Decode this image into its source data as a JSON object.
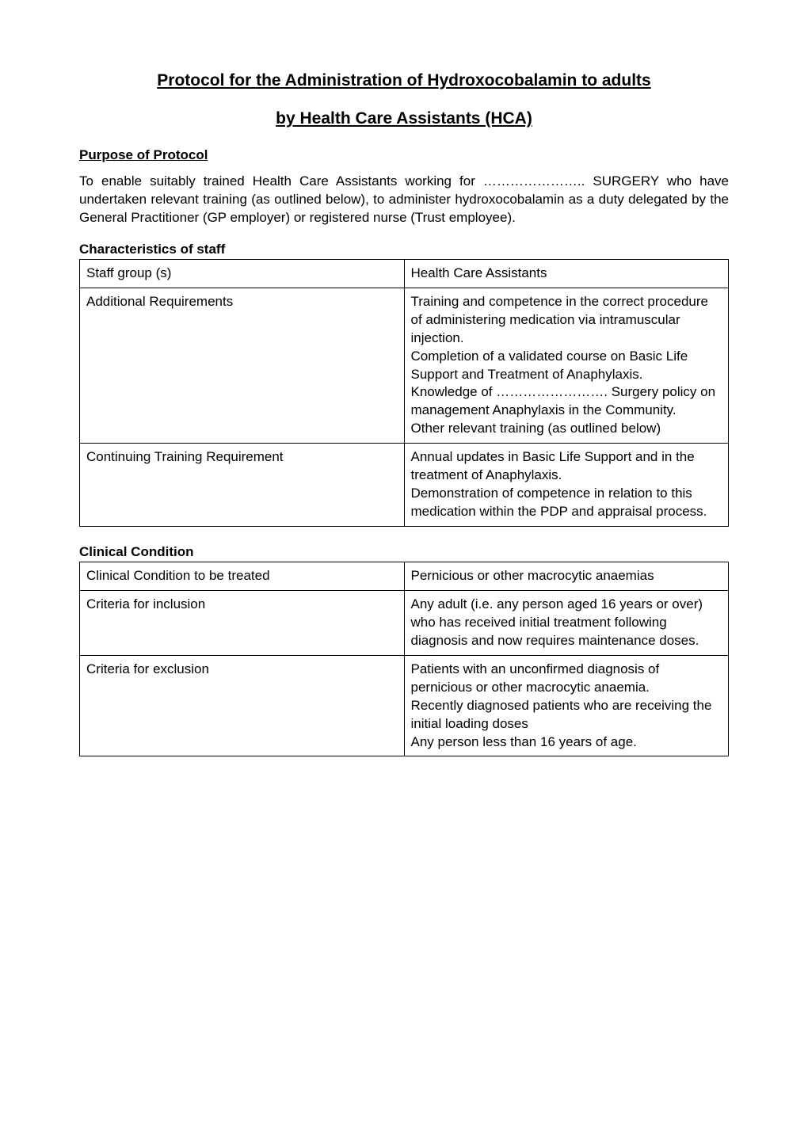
{
  "title": "Protocol for the Administration of Hydroxocobalamin to adults",
  "subtitle": "by Health Care Assistants (HCA)",
  "purpose": {
    "heading": "Purpose of Protocol",
    "body": "To enable suitably trained Health Care Assistants working for ………………….. SURGERY who have undertaken relevant training (as outlined below), to administer hydroxocobalamin as a duty delegated by the General Practitioner (GP employer) or registered nurse (Trust employee)."
  },
  "staff_table": {
    "heading": "Characteristics of staff",
    "rows": [
      {
        "label": "Staff group (s)",
        "value": "Health Care Assistants"
      },
      {
        "label": "Additional Requirements",
        "value": "Training and competence in the correct procedure of administering medication via intramuscular injection.\nCompletion of a validated course on Basic Life Support and Treatment of Anaphylaxis.\nKnowledge of ……………………. Surgery policy on management Anaphylaxis in the Community.\nOther relevant training (as outlined below)"
      },
      {
        "label": "Continuing Training Requirement",
        "value": "Annual updates in Basic Life Support and in the treatment of Anaphylaxis.\nDemonstration of competence in relation to this medication within the PDP and appraisal process."
      }
    ]
  },
  "clinical_table": {
    "heading": "Clinical Condition",
    "rows": [
      {
        "label": "Clinical Condition to be treated",
        "value": "Pernicious or other macrocytic anaemias"
      },
      {
        "label": "Criteria for inclusion",
        "value": "Any adult (i.e. any person aged 16 years or over) who has received initial treatment following diagnosis and now requires maintenance doses."
      },
      {
        "label": "Criteria for exclusion",
        "value": "Patients with an unconfirmed diagnosis of pernicious or other macrocytic anaemia.\nRecently diagnosed patients who are receiving the initial loading doses\nAny person less than 16 years of age."
      }
    ]
  }
}
